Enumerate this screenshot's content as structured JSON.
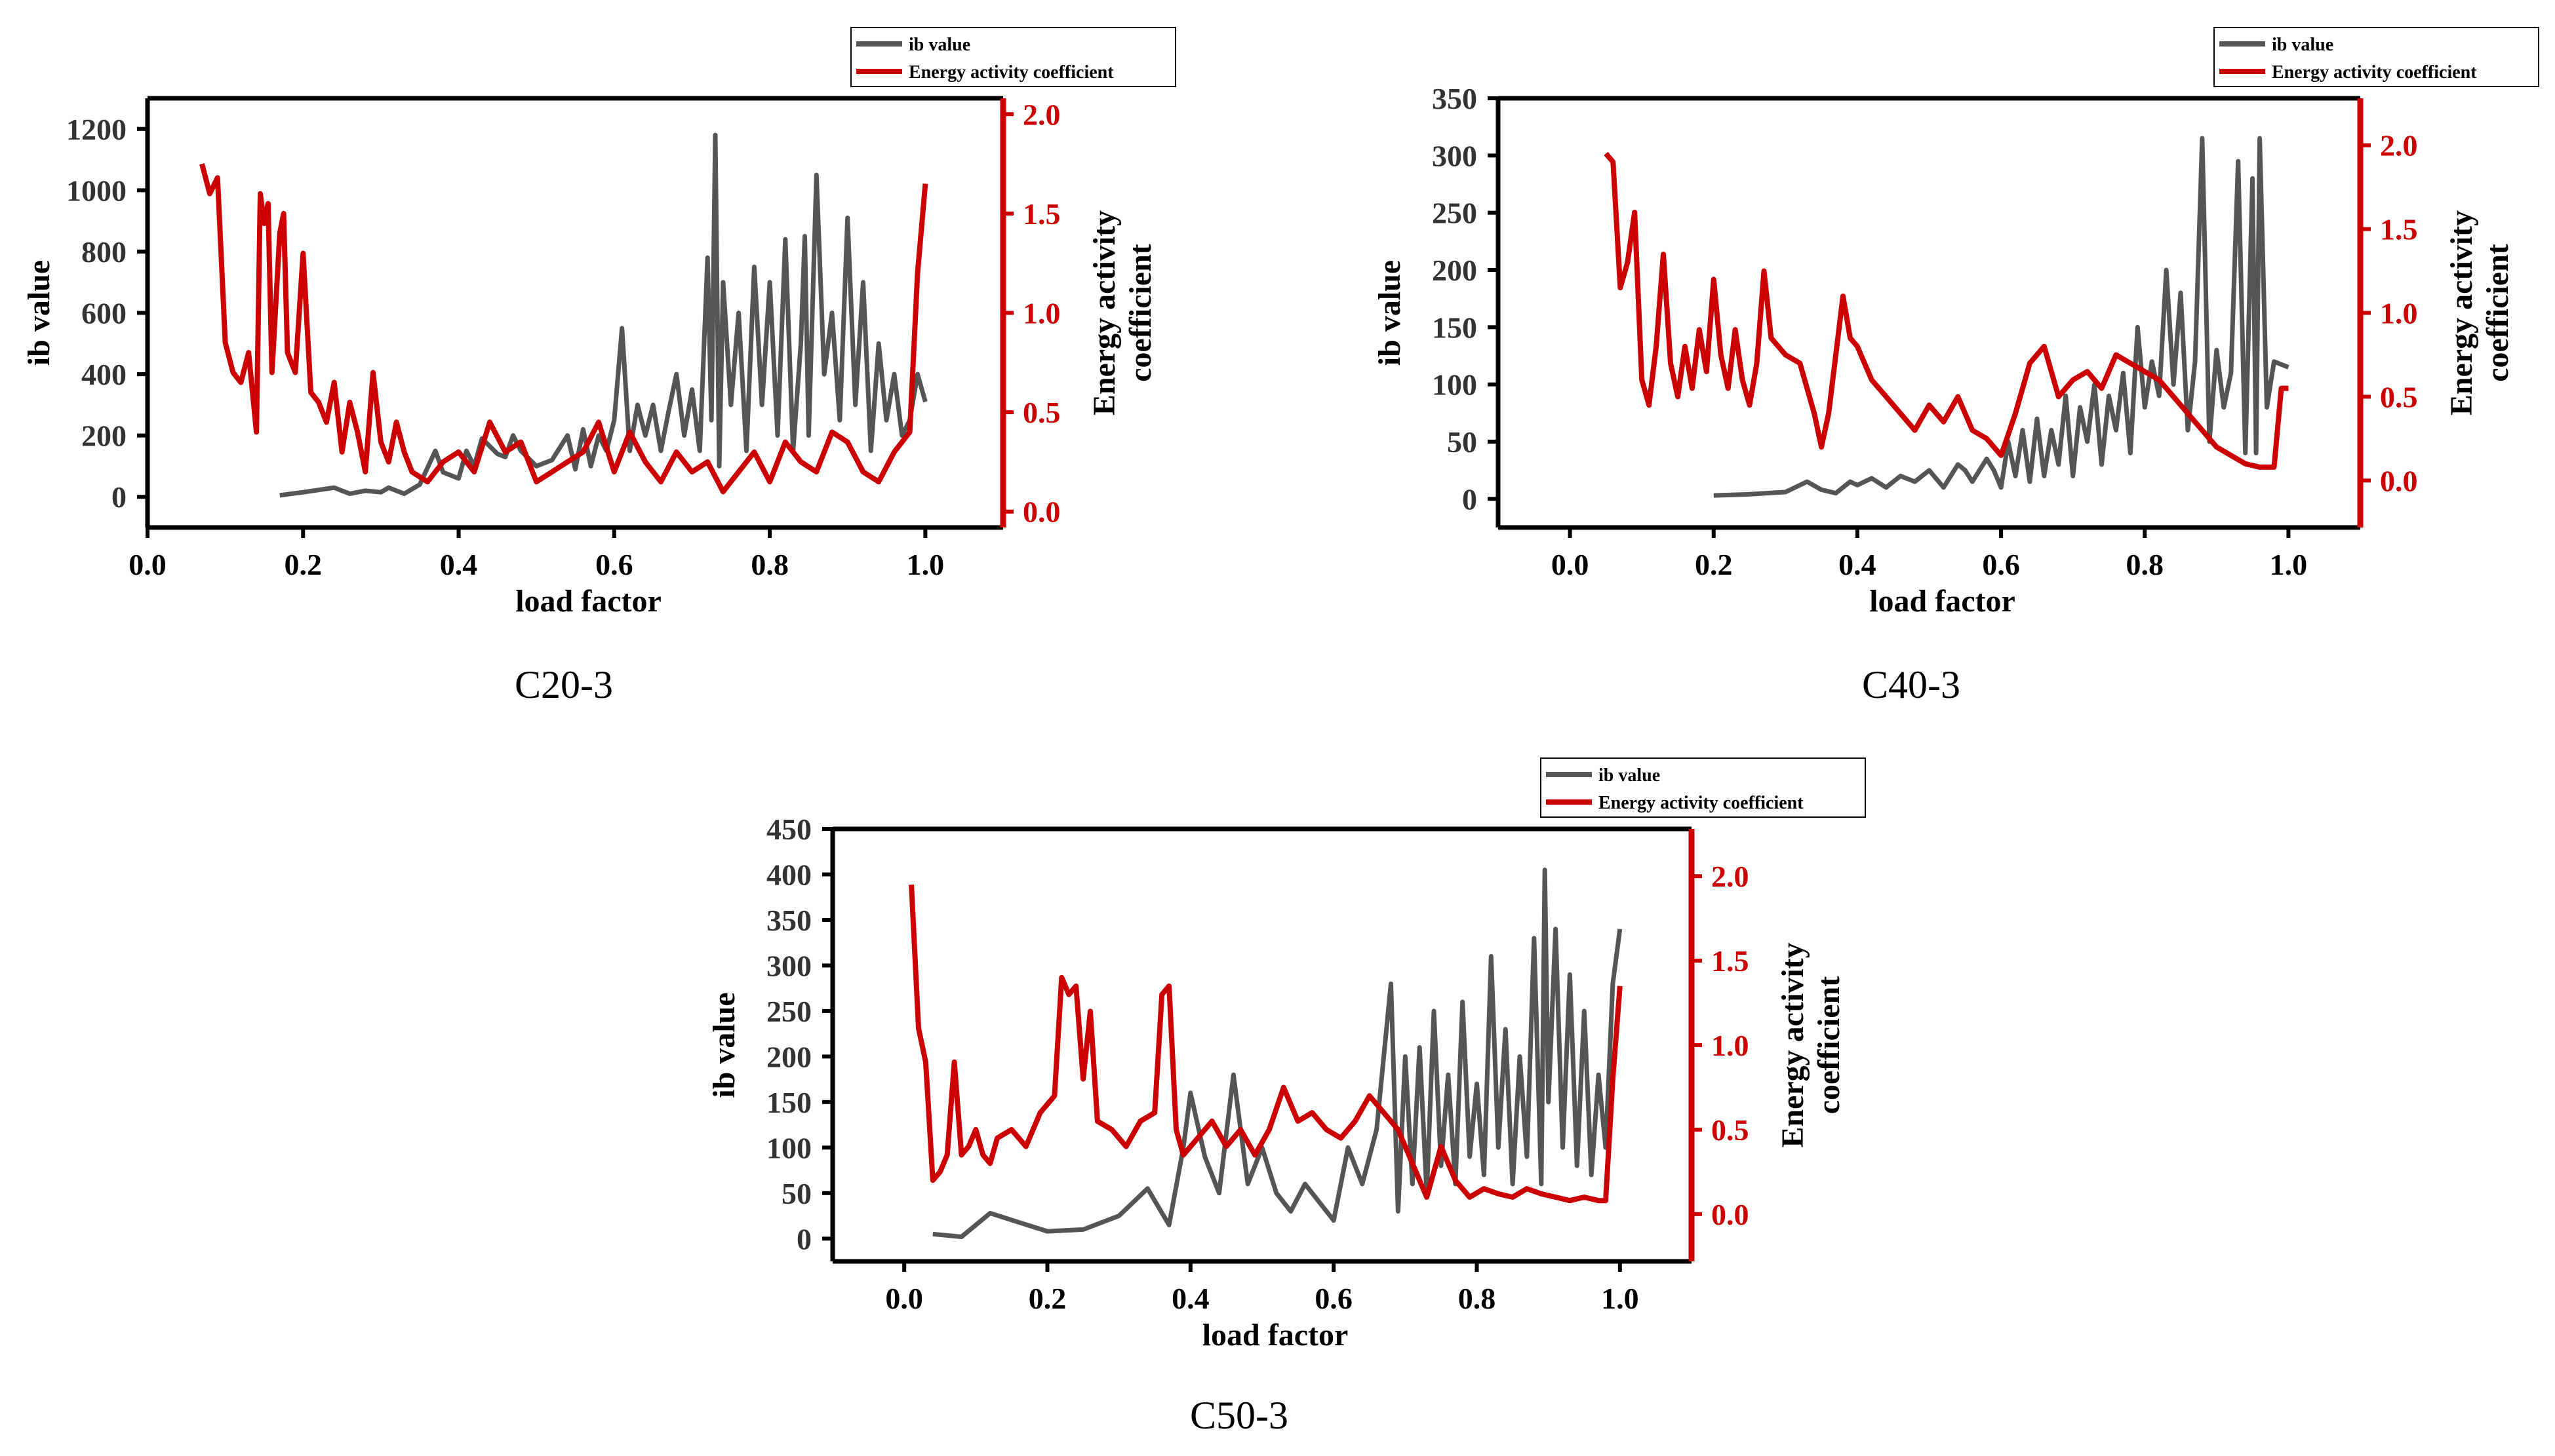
{
  "colors": {
    "ib": "#555555",
    "energy": "#cc0000",
    "axis": "#000000"
  },
  "chart_data": [
    {
      "type": "line",
      "caption": "C20-3",
      "xlabel": "load factor",
      "ylabel": "ib value",
      "y2label_line1": "Energy activity",
      "y2label_line2": "coefficient",
      "legend": [
        "ib value",
        "Energy activity coefficient"
      ],
      "xlim": [
        0.0,
        1.1
      ],
      "xticks": [
        0.0,
        0.2,
        0.4,
        0.6,
        0.8,
        1.0
      ],
      "ylim": [
        -100,
        1300
      ],
      "yticks": [
        0,
        200,
        400,
        600,
        800,
        1000,
        1200
      ],
      "y2lim": [
        -0.08,
        2.08
      ],
      "y2ticks": [
        0.0,
        0.5,
        1.0,
        1.5,
        2.0
      ],
      "series": [
        {
          "name": "ib value",
          "axis": "left",
          "x": [
            0.17,
            0.2,
            0.24,
            0.26,
            0.28,
            0.3,
            0.31,
            0.33,
            0.35,
            0.37,
            0.38,
            0.4,
            0.41,
            0.42,
            0.43,
            0.45,
            0.46,
            0.47,
            0.48,
            0.5,
            0.52,
            0.54,
            0.55,
            0.56,
            0.57,
            0.58,
            0.59,
            0.6,
            0.61,
            0.62,
            0.63,
            0.64,
            0.65,
            0.66,
            0.67,
            0.68,
            0.69,
            0.7,
            0.71,
            0.72,
            0.725,
            0.73,
            0.735,
            0.74,
            0.75,
            0.76,
            0.77,
            0.78,
            0.79,
            0.8,
            0.81,
            0.82,
            0.83,
            0.84,
            0.845,
            0.85,
            0.86,
            0.87,
            0.88,
            0.89,
            0.9,
            0.91,
            0.92,
            0.93,
            0.94,
            0.95,
            0.96,
            0.97,
            0.98,
            0.99,
            1.0
          ],
          "y": [
            5,
            15,
            30,
            10,
            20,
            15,
            30,
            10,
            40,
            150,
            80,
            60,
            150,
            100,
            190,
            140,
            130,
            200,
            150,
            100,
            120,
            200,
            90,
            220,
            100,
            200,
            150,
            250,
            550,
            150,
            300,
            200,
            300,
            150,
            280,
            400,
            200,
            350,
            150,
            780,
            250,
            1180,
            100,
            700,
            300,
            600,
            150,
            750,
            300,
            700,
            200,
            840,
            150,
            500,
            850,
            200,
            1050,
            400,
            600,
            250,
            910,
            300,
            700,
            150,
            500,
            250,
            400,
            200,
            250,
            400,
            310
          ]
        },
        {
          "name": "Energy activity coefficient",
          "axis": "right",
          "x": [
            0.07,
            0.08,
            0.09,
            0.1,
            0.11,
            0.12,
            0.13,
            0.14,
            0.145,
            0.15,
            0.155,
            0.16,
            0.17,
            0.175,
            0.18,
            0.19,
            0.2,
            0.21,
            0.22,
            0.23,
            0.24,
            0.25,
            0.26,
            0.27,
            0.28,
            0.29,
            0.3,
            0.31,
            0.32,
            0.33,
            0.34,
            0.36,
            0.38,
            0.4,
            0.42,
            0.44,
            0.46,
            0.48,
            0.5,
            0.52,
            0.54,
            0.56,
            0.58,
            0.6,
            0.62,
            0.64,
            0.66,
            0.68,
            0.7,
            0.72,
            0.74,
            0.76,
            0.78,
            0.8,
            0.82,
            0.84,
            0.86,
            0.88,
            0.9,
            0.92,
            0.94,
            0.96,
            0.98,
            0.99,
            1.0
          ],
          "y": [
            1.75,
            1.6,
            1.68,
            0.85,
            0.7,
            0.65,
            0.8,
            0.4,
            1.6,
            1.45,
            1.55,
            0.7,
            1.4,
            1.5,
            0.8,
            0.7,
            1.3,
            0.6,
            0.55,
            0.45,
            0.65,
            0.3,
            0.55,
            0.4,
            0.2,
            0.7,
            0.35,
            0.25,
            0.45,
            0.3,
            0.2,
            0.15,
            0.25,
            0.3,
            0.2,
            0.45,
            0.3,
            0.35,
            0.15,
            0.2,
            0.25,
            0.3,
            0.45,
            0.2,
            0.4,
            0.25,
            0.15,
            0.3,
            0.2,
            0.25,
            0.1,
            0.2,
            0.3,
            0.15,
            0.35,
            0.25,
            0.2,
            0.4,
            0.35,
            0.2,
            0.15,
            0.3,
            0.4,
            1.2,
            1.65
          ]
        }
      ]
    },
    {
      "type": "line",
      "caption": "C40-3",
      "xlabel": "load factor",
      "ylabel": "ib value",
      "y2label_line1": "Energy activity",
      "y2label_line2": "coefficient",
      "legend": [
        "ib value",
        "Energy activity coefficient"
      ],
      "xlim": [
        -0.1,
        1.1
      ],
      "xticks": [
        0.0,
        0.2,
        0.4,
        0.6,
        0.8,
        1.0
      ],
      "ylim": [
        -25,
        350
      ],
      "yticks": [
        0,
        50,
        100,
        150,
        200,
        250,
        300,
        350
      ],
      "y2lim": [
        -0.28,
        2.28
      ],
      "y2ticks": [
        0.0,
        0.5,
        1.0,
        1.5,
        2.0
      ],
      "series": [
        {
          "name": "ib value",
          "axis": "left",
          "x": [
            0.2,
            0.25,
            0.3,
            0.33,
            0.35,
            0.37,
            0.39,
            0.4,
            0.42,
            0.44,
            0.46,
            0.48,
            0.5,
            0.52,
            0.54,
            0.55,
            0.56,
            0.58,
            0.59,
            0.6,
            0.61,
            0.62,
            0.63,
            0.64,
            0.65,
            0.66,
            0.67,
            0.68,
            0.69,
            0.7,
            0.71,
            0.72,
            0.73,
            0.74,
            0.75,
            0.76,
            0.77,
            0.78,
            0.79,
            0.8,
            0.81,
            0.82,
            0.83,
            0.84,
            0.85,
            0.86,
            0.87,
            0.88,
            0.89,
            0.9,
            0.91,
            0.92,
            0.93,
            0.94,
            0.95,
            0.955,
            0.96,
            0.97,
            0.98,
            1.0
          ],
          "y": [
            3,
            4,
            6,
            15,
            8,
            5,
            15,
            12,
            18,
            10,
            20,
            15,
            25,
            10,
            30,
            25,
            15,
            35,
            25,
            10,
            50,
            20,
            60,
            15,
            70,
            20,
            60,
            30,
            90,
            20,
            80,
            50,
            100,
            30,
            90,
            60,
            110,
            40,
            150,
            80,
            120,
            90,
            200,
            100,
            180,
            60,
            120,
            315,
            50,
            130,
            80,
            110,
            295,
            40,
            280,
            40,
            315,
            80,
            120,
            115
          ]
        },
        {
          "name": "Energy activity coefficient",
          "axis": "right",
          "x": [
            0.05,
            0.06,
            0.07,
            0.08,
            0.09,
            0.1,
            0.11,
            0.12,
            0.13,
            0.14,
            0.15,
            0.16,
            0.17,
            0.18,
            0.19,
            0.2,
            0.21,
            0.22,
            0.23,
            0.24,
            0.25,
            0.26,
            0.27,
            0.28,
            0.29,
            0.3,
            0.32,
            0.34,
            0.35,
            0.36,
            0.38,
            0.39,
            0.4,
            0.42,
            0.44,
            0.46,
            0.48,
            0.5,
            0.52,
            0.54,
            0.56,
            0.58,
            0.6,
            0.62,
            0.64,
            0.66,
            0.68,
            0.7,
            0.72,
            0.74,
            0.76,
            0.78,
            0.8,
            0.82,
            0.84,
            0.86,
            0.88,
            0.9,
            0.92,
            0.94,
            0.96,
            0.98,
            0.99,
            1.0
          ],
          "y": [
            1.95,
            1.9,
            1.15,
            1.3,
            1.6,
            0.6,
            0.45,
            0.8,
            1.35,
            0.7,
            0.5,
            0.8,
            0.55,
            0.9,
            0.65,
            1.2,
            0.75,
            0.55,
            0.9,
            0.6,
            0.45,
            0.7,
            1.25,
            0.85,
            0.8,
            0.75,
            0.7,
            0.4,
            0.2,
            0.4,
            1.1,
            0.85,
            0.8,
            0.6,
            0.5,
            0.4,
            0.3,
            0.45,
            0.35,
            0.5,
            0.3,
            0.25,
            0.15,
            0.4,
            0.7,
            0.8,
            0.5,
            0.6,
            0.65,
            0.55,
            0.75,
            0.7,
            0.65,
            0.6,
            0.5,
            0.4,
            0.3,
            0.2,
            0.15,
            0.1,
            0.08,
            0.08,
            0.55,
            0.55
          ]
        }
      ]
    },
    {
      "type": "line",
      "caption": "C50-3",
      "xlabel": "load factor",
      "ylabel": "ib value",
      "y2label_line1": "Energy activity",
      "y2label_line2": "coefficient",
      "legend": [
        "ib value",
        "Energy activity coefficient"
      ],
      "xlim": [
        -0.1,
        1.1
      ],
      "xticks": [
        0.0,
        0.2,
        0.4,
        0.6,
        0.8,
        1.0
      ],
      "ylim": [
        -25,
        450
      ],
      "yticks": [
        0,
        50,
        100,
        150,
        200,
        250,
        300,
        350,
        400,
        450
      ],
      "y2lim": [
        -0.28,
        2.28
      ],
      "y2ticks": [
        0.0,
        0.5,
        1.0,
        1.5,
        2.0
      ],
      "series": [
        {
          "name": "ib value",
          "axis": "left",
          "x": [
            0.04,
            0.08,
            0.12,
            0.16,
            0.2,
            0.25,
            0.3,
            0.34,
            0.37,
            0.39,
            0.4,
            0.42,
            0.44,
            0.46,
            0.48,
            0.5,
            0.52,
            0.54,
            0.56,
            0.58,
            0.6,
            0.62,
            0.64,
            0.66,
            0.68,
            0.69,
            0.7,
            0.71,
            0.72,
            0.73,
            0.74,
            0.75,
            0.76,
            0.77,
            0.78,
            0.79,
            0.8,
            0.81,
            0.82,
            0.83,
            0.84,
            0.85,
            0.86,
            0.87,
            0.88,
            0.89,
            0.895,
            0.9,
            0.91,
            0.92,
            0.93,
            0.94,
            0.95,
            0.96,
            0.97,
            0.98,
            0.99,
            1.0
          ],
          "y": [
            5,
            2,
            28,
            18,
            8,
            10,
            25,
            55,
            15,
            100,
            160,
            90,
            50,
            180,
            60,
            100,
            50,
            30,
            60,
            40,
            20,
            100,
            60,
            120,
            280,
            30,
            200,
            60,
            210,
            50,
            250,
            80,
            180,
            60,
            260,
            90,
            170,
            70,
            310,
            100,
            230,
            60,
            200,
            90,
            330,
            60,
            405,
            150,
            340,
            100,
            290,
            80,
            250,
            70,
            180,
            100,
            280,
            340
          ]
        },
        {
          "name": "Energy activity coefficient",
          "axis": "right",
          "x": [
            0.01,
            0.02,
            0.03,
            0.04,
            0.05,
            0.06,
            0.07,
            0.08,
            0.09,
            0.1,
            0.11,
            0.12,
            0.13,
            0.15,
            0.17,
            0.19,
            0.21,
            0.22,
            0.23,
            0.24,
            0.25,
            0.26,
            0.27,
            0.29,
            0.31,
            0.33,
            0.35,
            0.36,
            0.37,
            0.38,
            0.39,
            0.41,
            0.43,
            0.45,
            0.47,
            0.49,
            0.51,
            0.53,
            0.55,
            0.57,
            0.59,
            0.61,
            0.63,
            0.65,
            0.67,
            0.69,
            0.71,
            0.73,
            0.75,
            0.77,
            0.79,
            0.81,
            0.83,
            0.85,
            0.87,
            0.89,
            0.91,
            0.93,
            0.95,
            0.97,
            0.98,
            0.99,
            1.0
          ],
          "y": [
            1.95,
            1.1,
            0.9,
            0.2,
            0.25,
            0.35,
            0.9,
            0.35,
            0.4,
            0.5,
            0.35,
            0.3,
            0.45,
            0.5,
            0.4,
            0.6,
            0.7,
            1.4,
            1.3,
            1.35,
            0.8,
            1.2,
            0.55,
            0.5,
            0.4,
            0.55,
            0.6,
            1.3,
            1.35,
            0.5,
            0.35,
            0.45,
            0.55,
            0.4,
            0.5,
            0.35,
            0.5,
            0.75,
            0.55,
            0.6,
            0.5,
            0.45,
            0.55,
            0.7,
            0.6,
            0.5,
            0.3,
            0.1,
            0.4,
            0.2,
            0.1,
            0.15,
            0.12,
            0.1,
            0.15,
            0.12,
            0.1,
            0.08,
            0.1,
            0.08,
            0.08,
            0.8,
            1.35
          ]
        }
      ]
    }
  ]
}
